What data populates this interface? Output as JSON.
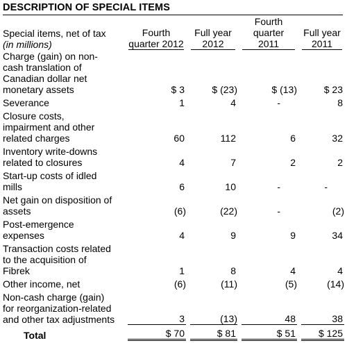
{
  "title": "DESCRIPTION OF SPECIAL ITEMS",
  "header": {
    "label_line1": "Special items, net of tax",
    "label_line2": "(in millions)",
    "columns": [
      {
        "line1": "Fourth",
        "line2": "quarter 2012"
      },
      {
        "line1": "Full year",
        "line2": "2012"
      },
      {
        "line1": "Fourth",
        "line2": "quarter 2011"
      },
      {
        "line1": "Full year",
        "line2": "2011"
      }
    ]
  },
  "rows": [
    {
      "label": [
        "Charge (gain) on non-",
        "cash translation of",
        "Canadian dollar net",
        "monetary assets"
      ],
      "values": [
        "$ 3",
        "$ (23)",
        "$ (13)",
        "$ 23"
      ]
    },
    {
      "label": [
        "Severance"
      ],
      "values": [
        "1",
        "4",
        "-",
        "8"
      ]
    },
    {
      "label": [
        "Closure costs,",
        "impairment and other",
        "related charges"
      ],
      "values": [
        "60",
        "112",
        "6",
        "32"
      ]
    },
    {
      "label": [
        "Inventory write-downs",
        "related to closures"
      ],
      "values": [
        "4",
        "7",
        "2",
        "2"
      ]
    },
    {
      "label": [
        "Start-up costs of idled",
        "mills"
      ],
      "values": [
        "6",
        "10",
        "-",
        "-"
      ]
    },
    {
      "label": [
        "Net gain on disposition of",
        "assets"
      ],
      "values": [
        "(6)",
        "(22)",
        "-",
        "(2)"
      ]
    },
    {
      "label": [
        "Post-emergence",
        "expenses"
      ],
      "values": [
        "4",
        "9",
        "9",
        "34"
      ]
    },
    {
      "label": [
        "Transaction costs related",
        "to the acquisition of",
        "Fibrek"
      ],
      "values": [
        "1",
        "8",
        "4",
        "4"
      ]
    },
    {
      "label": [
        "Other income, net"
      ],
      "values": [
        "(6)",
        "(11)",
        "(5)",
        "(14)"
      ]
    },
    {
      "label": [
        "Non-cash charge (gain)",
        "for reorganization-related",
        "and other tax adjustments"
      ],
      "values": [
        "3",
        "(13)",
        "48",
        "38"
      ]
    }
  ],
  "total": {
    "label": "Total",
    "values": [
      "$ 70",
      "$ 81",
      "$ 51",
      "$ 125"
    ]
  }
}
